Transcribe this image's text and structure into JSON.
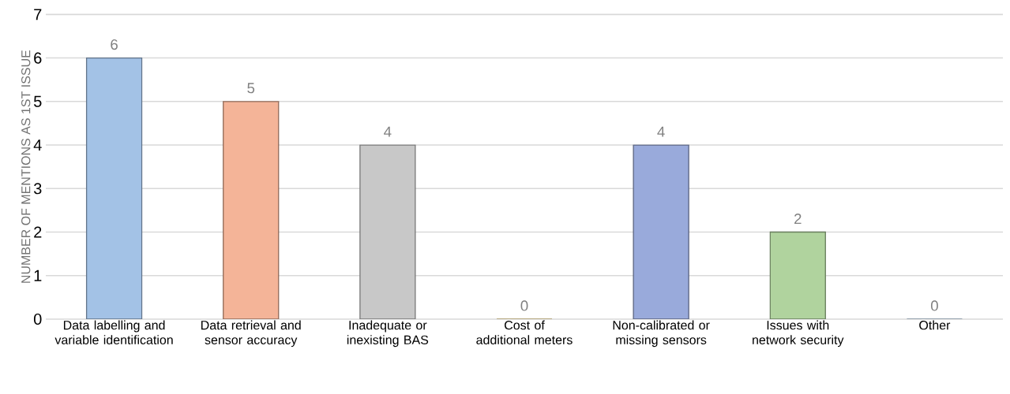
{
  "chart_data": {
    "type": "bar",
    "ylabel": "NUMBER OF MENTIONS AS 1ST ISSUE",
    "categories": [
      "Data labelling and variable identification",
      "Data retrieval and sensor accuracy",
      "Inadequate or inexisting BAS",
      "Cost of additional meters",
      "Non-calibrated or missing sensors",
      "Issues with network security",
      "Other"
    ],
    "values": [
      6,
      5,
      4,
      0,
      4,
      2,
      0
    ],
    "colors": [
      "#a3c2e6",
      "#f4b498",
      "#c8c8c8",
      "#ffd966",
      "#99aadb",
      "#b0d39e",
      "#9dc3e6"
    ],
    "ylim": [
      0,
      7
    ],
    "yticks": [
      0,
      1,
      2,
      3,
      4,
      5,
      6,
      7
    ],
    "grid": "y",
    "data_labels": true
  }
}
